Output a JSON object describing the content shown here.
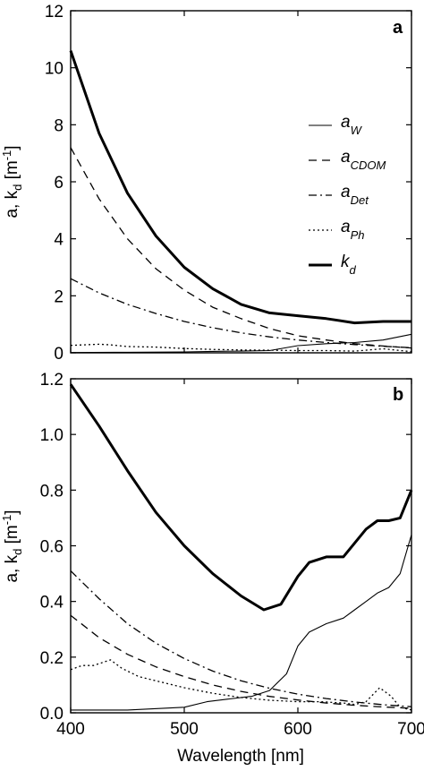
{
  "chart_data": [
    {
      "type": "line",
      "panel_label": "a",
      "x_range": [
        400,
        700
      ],
      "ylim": [
        0,
        12
      ],
      "y_ticks": [
        "0",
        "2",
        "4",
        "6",
        "8",
        "10",
        "12"
      ],
      "x_ticks": [],
      "ylabel": {
        "main": "a, k",
        "sub": "d",
        "unit": " [m",
        "sup": "-1",
        "close": "]"
      },
      "legend": {
        "position": "right"
      },
      "series": [
        {
          "name": "a",
          "sub": "W",
          "style": "solid",
          "x": [
            400,
            450,
            500,
            525,
            550,
            575,
            600,
            625,
            650,
            675,
            700
          ],
          "y": [
            0.01,
            0.02,
            0.03,
            0.05,
            0.06,
            0.08,
            0.25,
            0.32,
            0.36,
            0.45,
            0.65
          ]
        },
        {
          "name": "a",
          "sub": "CDOM",
          "style": "dashed",
          "x": [
            400,
            425,
            450,
            475,
            500,
            525,
            550,
            575,
            600,
            625,
            650,
            675,
            700
          ],
          "y": [
            7.2,
            5.4,
            4.0,
            2.95,
            2.2,
            1.6,
            1.2,
            0.85,
            0.6,
            0.45,
            0.32,
            0.24,
            0.17
          ]
        },
        {
          "name": "a",
          "sub": "Det",
          "style": "dashdot",
          "x": [
            400,
            425,
            450,
            475,
            500,
            525,
            550,
            575,
            600,
            625,
            650,
            675,
            700
          ],
          "y": [
            2.6,
            2.1,
            1.7,
            1.38,
            1.1,
            0.88,
            0.7,
            0.56,
            0.45,
            0.36,
            0.29,
            0.23,
            0.18
          ]
        },
        {
          "name": "a",
          "sub": "Ph",
          "style": "dotted",
          "x": [
            400,
            425,
            435,
            450,
            475,
            500,
            525,
            550,
            575,
            600,
            625,
            650,
            675,
            700
          ],
          "y": [
            0.26,
            0.3,
            0.28,
            0.22,
            0.2,
            0.15,
            0.12,
            0.1,
            0.09,
            0.08,
            0.08,
            0.06,
            0.14,
            0.04
          ]
        },
        {
          "name": "k",
          "sub": "d",
          "style": "thick",
          "x": [
            400,
            425,
            450,
            475,
            500,
            525,
            550,
            575,
            600,
            625,
            650,
            675,
            700
          ],
          "y": [
            10.6,
            7.7,
            5.6,
            4.1,
            3.0,
            2.25,
            1.7,
            1.4,
            1.3,
            1.2,
            1.05,
            1.1,
            1.1
          ]
        }
      ]
    },
    {
      "type": "line",
      "panel_label": "b",
      "x_range": [
        400,
        700
      ],
      "ylim": [
        0,
        1.2
      ],
      "y_ticks": [
        "0.0",
        "0.2",
        "0.4",
        "0.6",
        "0.8",
        "1.0",
        "1.2"
      ],
      "x_ticks": [
        "400",
        "500",
        "600",
        "700"
      ],
      "xlabel": "Wavelength [nm]",
      "ylabel": {
        "main": "a, k",
        "sub": "d",
        "unit": " [m",
        "sup": "-1",
        "close": "]"
      },
      "series": [
        {
          "name": "a_W",
          "style": "solid",
          "x": [
            400,
            450,
            500,
            520,
            540,
            560,
            575,
            590,
            600,
            610,
            625,
            640,
            650,
            660,
            670,
            680,
            690,
            700
          ],
          "y": [
            0.01,
            0.01,
            0.02,
            0.04,
            0.05,
            0.06,
            0.08,
            0.14,
            0.24,
            0.29,
            0.32,
            0.34,
            0.37,
            0.4,
            0.43,
            0.45,
            0.5,
            0.64
          ]
        },
        {
          "name": "a_CDOM",
          "style": "dashed",
          "x": [
            400,
            425,
            450,
            475,
            500,
            525,
            550,
            575,
            600,
            625,
            650,
            675,
            700
          ],
          "y": [
            0.35,
            0.27,
            0.21,
            0.165,
            0.13,
            0.1,
            0.077,
            0.059,
            0.046,
            0.035,
            0.027,
            0.021,
            0.016
          ]
        },
        {
          "name": "a_Det",
          "style": "dashdot",
          "x": [
            400,
            425,
            450,
            475,
            500,
            525,
            550,
            575,
            600,
            625,
            650,
            675,
            700
          ],
          "y": [
            0.51,
            0.41,
            0.32,
            0.25,
            0.195,
            0.15,
            0.115,
            0.088,
            0.067,
            0.051,
            0.039,
            0.029,
            0.022
          ]
        },
        {
          "name": "a_Ph",
          "style": "dotted",
          "x": [
            400,
            410,
            420,
            435,
            445,
            460,
            480,
            500,
            525,
            550,
            575,
            600,
            620,
            640,
            650,
            660,
            672,
            682,
            690,
            700
          ],
          "y": [
            0.155,
            0.17,
            0.17,
            0.19,
            0.16,
            0.13,
            0.11,
            0.09,
            0.07,
            0.055,
            0.045,
            0.04,
            0.04,
            0.035,
            0.03,
            0.04,
            0.09,
            0.06,
            0.02,
            0.01
          ]
        },
        {
          "name": "k_d",
          "style": "thick",
          "x": [
            400,
            425,
            450,
            475,
            500,
            525,
            550,
            570,
            585,
            600,
            610,
            625,
            640,
            650,
            660,
            670,
            680,
            690,
            700
          ],
          "y": [
            1.18,
            1.03,
            0.87,
            0.72,
            0.6,
            0.5,
            0.42,
            0.37,
            0.39,
            0.49,
            0.54,
            0.56,
            0.56,
            0.61,
            0.66,
            0.69,
            0.69,
            0.7,
            0.8
          ]
        }
      ]
    }
  ]
}
